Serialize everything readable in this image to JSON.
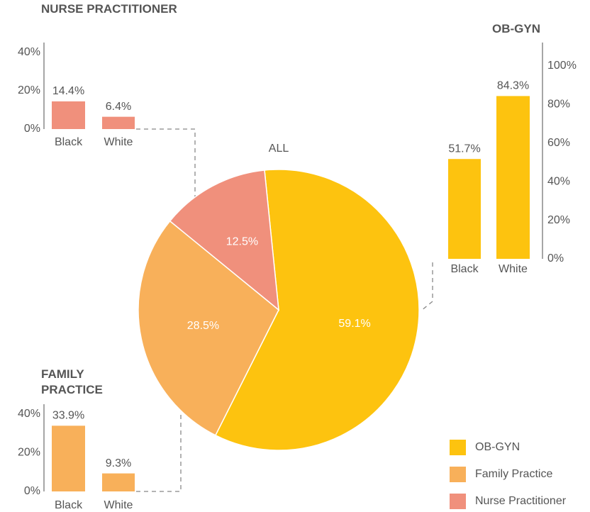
{
  "chart_data": [
    {
      "type": "pie",
      "title": "ALL",
      "categories": [
        "OB-GYN",
        "Family Practice",
        "Nurse Practitioner"
      ],
      "values": [
        59.1,
        28.5,
        12.5
      ],
      "value_labels": [
        "59.1%",
        "28.5%",
        "12.5%"
      ],
      "colors": [
        "#fdc30f",
        "#f8b05a",
        "#f0907c"
      ],
      "legend": "bottom-right"
    },
    {
      "type": "bar",
      "title": "NURSE PRACTITIONER",
      "categories": [
        "Black",
        "White"
      ],
      "values": [
        14.4,
        6.4
      ],
      "value_labels": [
        "14.4%",
        "6.4%"
      ],
      "color": "#f0907c",
      "ylim": [
        0,
        45
      ],
      "yticks": [
        {
          "value": 0,
          "label": "0%"
        },
        {
          "value": 20,
          "label": "20%"
        },
        {
          "value": 40,
          "label": "40%"
        }
      ],
      "axis_side": "left"
    },
    {
      "type": "bar",
      "title": "OB-GYN",
      "categories": [
        "Black",
        "White"
      ],
      "values": [
        51.7,
        84.3
      ],
      "value_labels": [
        "51.7%",
        "84.3%"
      ],
      "color": "#fdc30f",
      "ylim": [
        0,
        112
      ],
      "yticks": [
        {
          "value": 0,
          "label": "0%"
        },
        {
          "value": 20,
          "label": "20%"
        },
        {
          "value": 40,
          "label": "40%"
        },
        {
          "value": 60,
          "label": "60%"
        },
        {
          "value": 80,
          "label": "80%"
        },
        {
          "value": 100,
          "label": "100%"
        }
      ],
      "axis_side": "right"
    },
    {
      "type": "bar",
      "title": "FAMILY PRACTICE",
      "categories": [
        "Black",
        "White"
      ],
      "values": [
        33.9,
        9.3
      ],
      "value_labels": [
        "33.9%",
        "9.3%"
      ],
      "color": "#f8b05a",
      "ylim": [
        0,
        45
      ],
      "yticks": [
        {
          "value": 0,
          "label": "0%"
        },
        {
          "value": 20,
          "label": "20%"
        },
        {
          "value": 40,
          "label": "40%"
        }
      ],
      "axis_side": "left"
    }
  ]
}
